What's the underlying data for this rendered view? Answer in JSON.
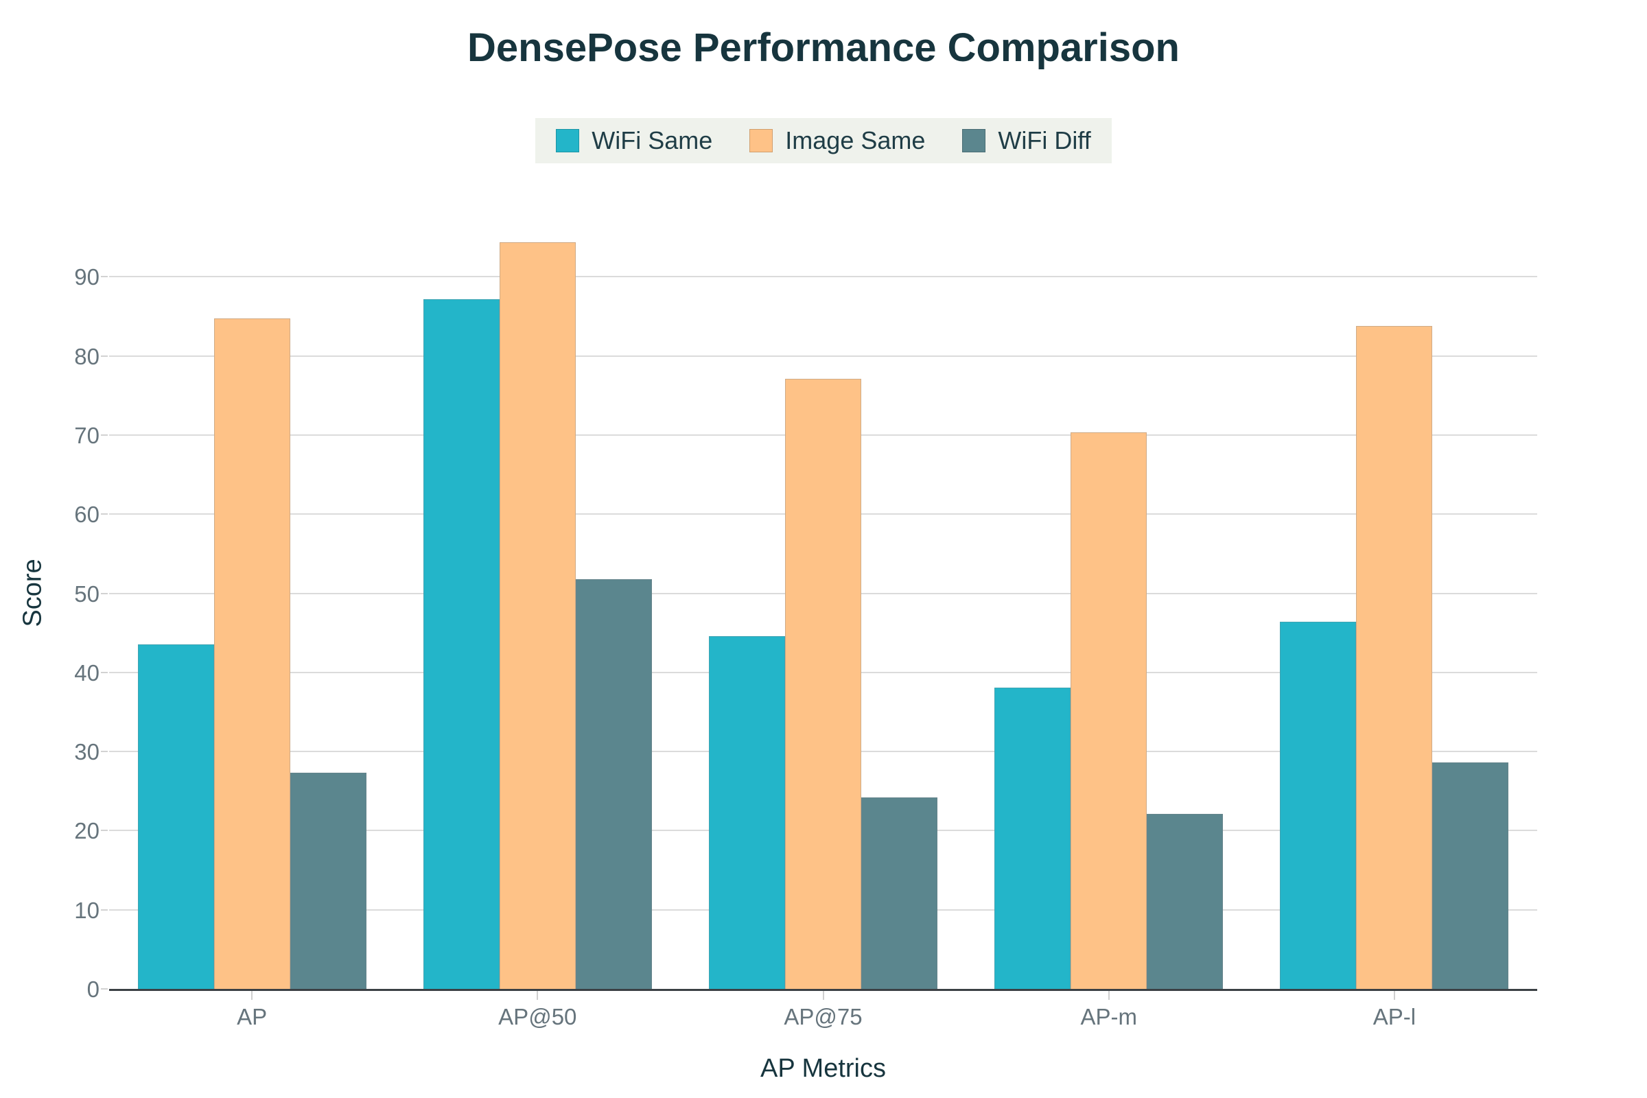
{
  "title": "DensePose Performance Comparison",
  "colors": {
    "wifi_same": "#23B5C9",
    "image_same": "#FEC287",
    "wifi_diff": "#5B868E",
    "title_text": "#17353E",
    "tick_text": "#66747C",
    "legend_bg": "#EFF2EC",
    "gridline": "#DBDBDB",
    "axis_line": "#3B4044"
  },
  "chart_data": {
    "type": "bar",
    "title": "DensePose Performance Comparison",
    "categories": [
      "AP",
      "AP@50",
      "AP@75",
      "AP-m",
      "AP-l"
    ],
    "series": [
      {
        "name": "WiFi Same",
        "color": "#23B5C9",
        "values": [
          43.5,
          87.2,
          44.6,
          38.1,
          46.4
        ]
      },
      {
        "name": "Image Same",
        "color": "#FEC287",
        "values": [
          84.7,
          94.4,
          77.1,
          70.3,
          83.8
        ]
      },
      {
        "name": "WiFi Diff",
        "color": "#5B868E",
        "values": [
          27.3,
          51.8,
          24.2,
          22.1,
          28.6
        ]
      }
    ],
    "xlabel": "AP Metrics",
    "ylabel": "Score",
    "yticks": [
      0,
      10,
      20,
      30,
      40,
      50,
      60,
      70,
      80,
      90
    ],
    "ylim": [
      0,
      100
    ],
    "grid": true,
    "legend_position": "top-center",
    "bar_gap_within_group": 0
  }
}
